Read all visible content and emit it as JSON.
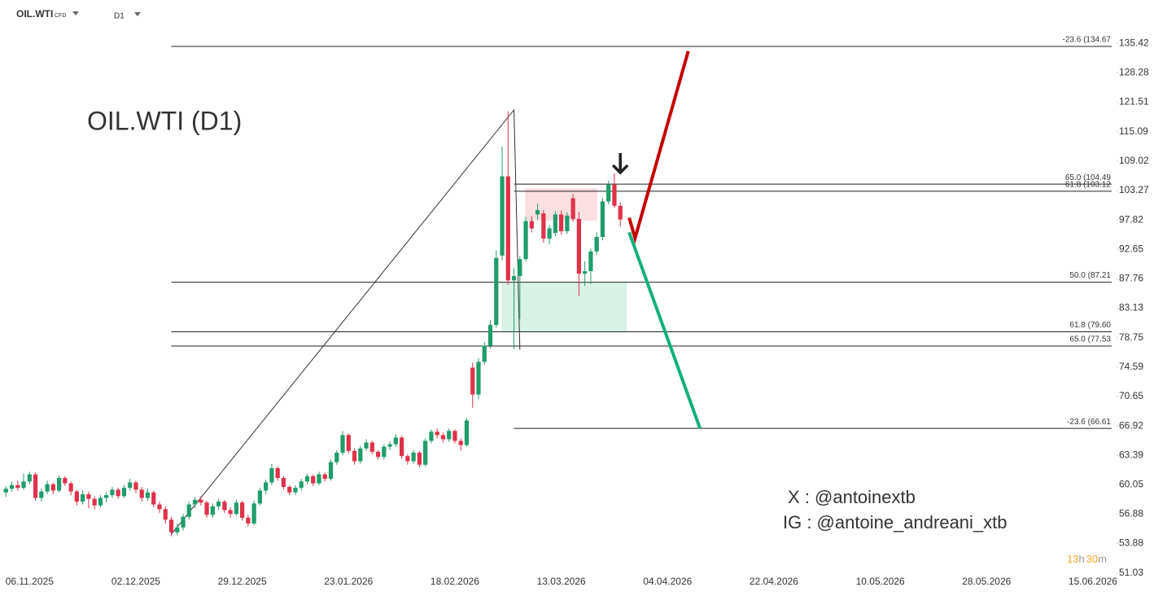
{
  "header": {
    "symbol": "OIL.WTI",
    "market": "CFD",
    "interval": "D1"
  },
  "chart_data": {
    "type": "candlestick",
    "title": "OIL.WTI (D1)",
    "up_color": "#1f9d6b",
    "down_color": "#e0314b",
    "log_scale": true,
    "xlim": [
      -1,
      188
    ],
    "ylim": [
      49.8,
      146.7
    ],
    "xticks": [
      {
        "value": 4,
        "label": "06.11.2025"
      },
      {
        "value": 22,
        "label": "02.12.2025"
      },
      {
        "value": 40,
        "label": "29.12.2025"
      },
      {
        "value": 58,
        "label": "23.01.2026"
      },
      {
        "value": 76,
        "label": "18.02.2026"
      },
      {
        "value": 94,
        "label": "13.03.2026"
      },
      {
        "value": 112,
        "label": "04.04.2026"
      },
      {
        "value": 130,
        "label": "22.04.2026"
      },
      {
        "value": 148,
        "label": "10.05.2026"
      },
      {
        "value": 166,
        "label": "28.05.2026"
      },
      {
        "value": 184,
        "label": "15.06.2026"
      }
    ],
    "yticks": [
      135.42,
      128.28,
      121.51,
      115.09,
      109.02,
      103.27,
      97.82,
      92.65,
      87.76,
      83.13,
      78.75,
      74.59,
      70.65,
      66.92,
      63.39,
      60.05,
      56.88,
      53.88,
      51.03
    ],
    "ohlc": [
      [
        59.2,
        59.9,
        58.7,
        59.6
      ],
      [
        59.6,
        60.4,
        59.3,
        60.0
      ],
      [
        60.0,
        60.5,
        59.4,
        59.7
      ],
      [
        59.7,
        61.3,
        59.5,
        60.4
      ],
      [
        60.4,
        61.5,
        60.1,
        61.2
      ],
      [
        61.2,
        61.4,
        58.3,
        58.6
      ],
      [
        58.6,
        59.6,
        58.2,
        59.3
      ],
      [
        59.3,
        60.5,
        59.0,
        60.1
      ],
      [
        60.1,
        60.3,
        59.0,
        59.4
      ],
      [
        59.4,
        61.1,
        59.2,
        60.8
      ],
      [
        60.8,
        61.0,
        59.9,
        60.2
      ],
      [
        60.2,
        60.4,
        58.9,
        59.3
      ],
      [
        59.3,
        59.5,
        57.8,
        58.2
      ],
      [
        58.2,
        59.4,
        57.9,
        59.0
      ],
      [
        59.0,
        59.3,
        57.5,
        58.5
      ],
      [
        58.5,
        58.8,
        57.4,
        57.8
      ],
      [
        57.8,
        58.9,
        57.6,
        58.6
      ],
      [
        58.6,
        59.2,
        58.1,
        58.9
      ],
      [
        58.9,
        59.8,
        58.6,
        59.5
      ],
      [
        59.5,
        59.7,
        58.5,
        58.8
      ],
      [
        58.8,
        60.0,
        58.6,
        59.7
      ],
      [
        59.7,
        60.7,
        59.4,
        60.3
      ],
      [
        60.3,
        60.5,
        59.1,
        59.5
      ],
      [
        59.5,
        59.8,
        58.2,
        58.6
      ],
      [
        58.6,
        59.6,
        58.3,
        59.2
      ],
      [
        59.2,
        59.4,
        57.6,
        57.9
      ],
      [
        57.9,
        58.2,
        57.0,
        57.4
      ],
      [
        57.4,
        57.7,
        55.9,
        56.3
      ],
      [
        56.3,
        56.6,
        54.6,
        55.0
      ],
      [
        55.0,
        55.9,
        54.7,
        55.5
      ],
      [
        55.5,
        56.9,
        55.2,
        56.6
      ],
      [
        56.6,
        58.2,
        56.3,
        57.9
      ],
      [
        57.9,
        58.7,
        57.5,
        58.4
      ],
      [
        58.4,
        58.8,
        57.8,
        58.1
      ],
      [
        58.1,
        58.3,
        56.5,
        56.8
      ],
      [
        56.8,
        58.0,
        56.5,
        57.7
      ],
      [
        57.7,
        58.5,
        57.3,
        58.2
      ],
      [
        58.2,
        58.4,
        57.0,
        57.3
      ],
      [
        57.3,
        57.6,
        56.5,
        56.9
      ],
      [
        56.9,
        58.4,
        56.7,
        58.1
      ],
      [
        58.1,
        58.3,
        56.2,
        56.5
      ],
      [
        56.5,
        56.8,
        55.6,
        55.9
      ],
      [
        55.9,
        58.3,
        55.7,
        58.0
      ],
      [
        58.0,
        59.7,
        57.8,
        59.4
      ],
      [
        59.4,
        60.6,
        59.0,
        60.3
      ],
      [
        60.3,
        62.4,
        60.0,
        61.9
      ],
      [
        61.9,
        62.1,
        60.5,
        60.8
      ],
      [
        60.8,
        61.0,
        59.5,
        59.8
      ],
      [
        59.8,
        60.0,
        58.9,
        59.2
      ],
      [
        59.2,
        60.0,
        58.9,
        59.7
      ],
      [
        59.7,
        60.7,
        59.4,
        60.4
      ],
      [
        60.4,
        61.3,
        60.1,
        61.0
      ],
      [
        61.0,
        61.2,
        59.9,
        60.2
      ],
      [
        60.2,
        61.5,
        60.0,
        61.2
      ],
      [
        61.2,
        61.4,
        60.4,
        60.7
      ],
      [
        60.7,
        62.9,
        60.5,
        62.6
      ],
      [
        62.6,
        64.0,
        62.3,
        63.7
      ],
      [
        63.7,
        66.3,
        63.4,
        65.8
      ],
      [
        65.8,
        66.0,
        63.6,
        63.9
      ],
      [
        63.9,
        64.2,
        62.3,
        62.7
      ],
      [
        62.7,
        64.5,
        62.4,
        64.2
      ],
      [
        64.2,
        65.3,
        63.9,
        64.9
      ],
      [
        64.9,
        65.1,
        63.5,
        63.8
      ],
      [
        63.8,
        64.0,
        62.9,
        63.2
      ],
      [
        63.2,
        64.7,
        62.9,
        64.4
      ],
      [
        64.4,
        65.0,
        64.0,
        64.7
      ],
      [
        64.7,
        65.9,
        64.4,
        65.5
      ],
      [
        65.5,
        65.7,
        63.0,
        63.3
      ],
      [
        63.3,
        63.5,
        62.3,
        62.7
      ],
      [
        62.7,
        64.0,
        62.4,
        63.7
      ],
      [
        63.7,
        63.9,
        62.0,
        62.3
      ],
      [
        62.3,
        65.4,
        62.1,
        65.1
      ],
      [
        65.1,
        66.5,
        64.8,
        66.2
      ],
      [
        66.2,
        66.6,
        65.4,
        65.8
      ],
      [
        65.8,
        66.1,
        64.9,
        65.3
      ],
      [
        65.3,
        66.6,
        65.0,
        66.3
      ],
      [
        66.3,
        66.5,
        64.8,
        65.1
      ],
      [
        65.1,
        65.4,
        63.9,
        64.6
      ],
      [
        64.6,
        67.9,
        64.4,
        67.6
      ],
      [
        74.5,
        75.2,
        69.2,
        70.9
      ],
      [
        70.9,
        75.8,
        70.3,
        75.3
      ],
      [
        75.3,
        78.1,
        74.9,
        77.6
      ],
      [
        77.6,
        81.3,
        77.2,
        80.6
      ],
      [
        80.6,
        92.5,
        80.2,
        91.2
      ],
      [
        91.6,
        112.0,
        90.8,
        106.0
      ],
      [
        106.0,
        119.5,
        86.8,
        87.5
      ],
      [
        87.5,
        89.5,
        77.1,
        88.2
      ],
      [
        88.2,
        91.5,
        81.5,
        91.0
      ],
      [
        91.0,
        98.4,
        90.6,
        97.6
      ],
      [
        97.6,
        98.5,
        95.6,
        96.3
      ],
      [
        98.8,
        100.8,
        97.9,
        99.6
      ],
      [
        99.0,
        99.6,
        93.8,
        94.5
      ],
      [
        94.5,
        96.9,
        93.5,
        96.3
      ],
      [
        95.5,
        99.4,
        94.9,
        98.8
      ],
      [
        98.8,
        99.5,
        95.2,
        95.8
      ],
      [
        95.8,
        99.2,
        95.3,
        98.6
      ],
      [
        101.8,
        102.6,
        97.5,
        98.0
      ],
      [
        98.0,
        99.2,
        85.0,
        88.6
      ],
      [
        88.6,
        90.6,
        86.6,
        89.0
      ],
      [
        89.0,
        92.8,
        86.9,
        92.3
      ],
      [
        92.3,
        95.6,
        91.7,
        94.8
      ],
      [
        94.8,
        101.8,
        94.2,
        101.2
      ],
      [
        101.2,
        105.1,
        100.6,
        104.4
      ],
      [
        104.4,
        106.6,
        100.0,
        100.4
      ],
      [
        100.4,
        101.0,
        96.6,
        97.9
      ]
    ],
    "levels": [
      {
        "label": "-23.6 (134.67",
        "value": 134.67,
        "x0": 28
      },
      {
        "label": "65.0 (104.49",
        "value": 104.49,
        "x0": 86
      },
      {
        "label": "61.8 (103.12",
        "value": 103.12,
        "x0": 86
      },
      {
        "label": "50.0 (87.21",
        "value": 87.21,
        "x0": 28
      },
      {
        "label": "61.8 (79.60",
        "value": 79.6,
        "x0": 28
      },
      {
        "label": "65.0 (77.53",
        "value": 77.53,
        "x0": 28
      },
      {
        "label": "-23.6 (66.61",
        "value": 66.61,
        "x0": 86
      }
    ],
    "trendline": {
      "x": [
        28,
        86,
        87
      ],
      "y": [
        54.8,
        119.8,
        77.0
      ],
      "color": "#333333"
    },
    "zones": [
      {
        "x": [
          88,
          100
        ],
        "y": [
          97.8,
          103.6
        ],
        "color": "#f8d3d5"
      },
      {
        "x": [
          84,
          105
        ],
        "y": [
          79.6,
          87.2
        ],
        "color": "#c9ecdc"
      }
    ],
    "projections": [
      {
        "x": [
          105.5,
          106.5,
          115.5
        ],
        "y": [
          98.2,
          94.6,
          133.5
        ],
        "color": "#c40000"
      },
      {
        "x": [
          105.5,
          117.5
        ],
        "y": [
          95.6,
          66.6
        ],
        "color": "#11b07c"
      }
    ],
    "signal_arrow": {
      "x": 104,
      "y": 108.5
    },
    "annotations": [
      "X : @antoinextb",
      "IG : @antoine_andreani_xtb"
    ],
    "countdown": [
      "13",
      "h",
      "30",
      "m"
    ]
  }
}
